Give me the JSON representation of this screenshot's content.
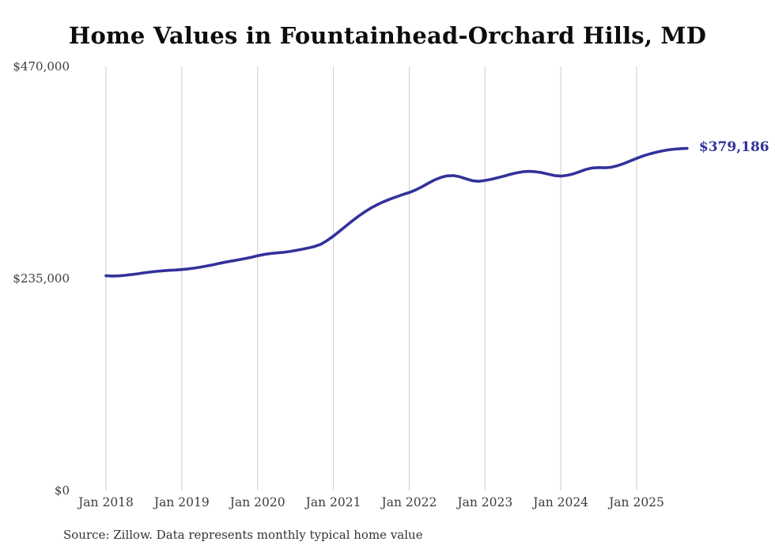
{
  "chart_data": {
    "type": "line",
    "title": "Home Values in Fountainhead-Orchard Hills, MD",
    "series_name": "Monthly typical home value",
    "x_start": "Jan 2018",
    "frequency": "monthly",
    "x_tick_labels": [
      "Jan 2018",
      "Jan 2019",
      "Jan 2020",
      "Jan 2021",
      "Jan 2022",
      "Jan 2023",
      "Jan 2024",
      "Jan 2025"
    ],
    "y_tick_labels": [
      "$470,000",
      "$235,000",
      "$0"
    ],
    "y_tick_values": [
      470000,
      235000,
      0
    ],
    "ylim": [
      0,
      470000
    ],
    "grid": "vertical-only",
    "legend": "none",
    "end_label": "$379,186",
    "final_value": 379186,
    "line_color": "#32329b",
    "grid_color": "#cccccc",
    "values": [
      238000,
      237700,
      237900,
      238500,
      239300,
      240200,
      241200,
      242100,
      242900,
      243500,
      244000,
      244400,
      244900,
      245600,
      246500,
      247600,
      248900,
      250300,
      251800,
      253200,
      254500,
      255700,
      257000,
      258500,
      260200,
      261600,
      262600,
      263300,
      263900,
      264800,
      266000,
      267400,
      268800,
      270400,
      272900,
      277000,
      282000,
      287500,
      293200,
      298800,
      304100,
      309000,
      313300,
      317000,
      320200,
      323000,
      325600,
      328000,
      330200,
      333000,
      336500,
      340500,
      344200,
      347000,
      348700,
      349100,
      347800,
      345500,
      343400,
      342700,
      343600,
      345000,
      346700,
      348500,
      350400,
      352100,
      353300,
      353700,
      353300,
      352300,
      350700,
      349100,
      348500,
      349300,
      351000,
      353400,
      355900,
      357500,
      357900,
      357700,
      358300,
      360000,
      362400,
      365300,
      368100,
      370700,
      372900,
      374800,
      376300,
      377600,
      378400,
      378900,
      379186
    ]
  },
  "footer": {
    "source": "Source: Zillow. Data represents monthly typical home value"
  }
}
